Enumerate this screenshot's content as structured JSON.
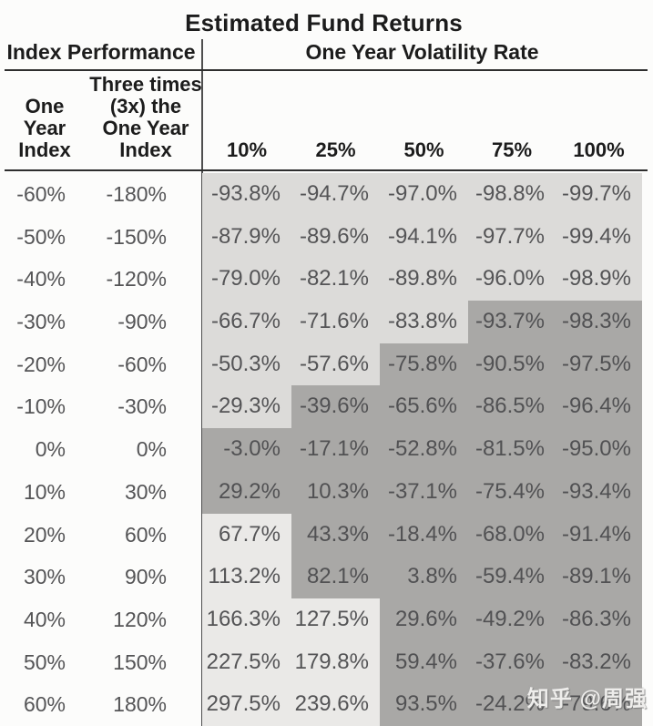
{
  "title": "Estimated Fund Returns",
  "group_headers": {
    "left": "Index Performance",
    "right": "One Year Volatility Rate"
  },
  "subheaders": {
    "one_year_index": "One\nYear\nIndex",
    "three_times_index": "Three times\n(3x) the\nOne Year\nIndex",
    "volatility": [
      "10%",
      "25%",
      "50%",
      "75%",
      "100%"
    ]
  },
  "watermark": "知乎 @周强",
  "colors": {
    "light_shade": "#dcdbd9",
    "dark_shade": "#a9a8a6",
    "bright_shade": "#eae9e7",
    "rule": "#2e2e2e",
    "header_text": "#1c1c1c",
    "data_text": "#545456"
  },
  "chart_data": {
    "type": "table",
    "title": "Estimated Fund Returns",
    "column_groups": [
      {
        "label": "Index Performance",
        "span": 2
      },
      {
        "label": "One Year Volatility Rate",
        "span": 5
      }
    ],
    "columns": [
      "One Year Index",
      "Three times (3x) the One Year Index",
      "10%",
      "25%",
      "50%",
      "75%",
      "100%"
    ],
    "rows": [
      [
        "-60%",
        "-180%",
        "-93.8%",
        "-94.7%",
        "-97.0%",
        "-98.8%",
        "-99.7%"
      ],
      [
        "-50%",
        "-150%",
        "-87.9%",
        "-89.6%",
        "-94.1%",
        "-97.7%",
        "-99.4%"
      ],
      [
        "-40%",
        "-120%",
        "-79.0%",
        "-82.1%",
        "-89.8%",
        "-96.0%",
        "-98.9%"
      ],
      [
        "-30%",
        "-90%",
        "-66.7%",
        "-71.6%",
        "-83.8%",
        "-93.7%",
        "-98.3%"
      ],
      [
        "-20%",
        "-60%",
        "-50.3%",
        "-57.6%",
        "-75.8%",
        "-90.5%",
        "-97.5%"
      ],
      [
        "-10%",
        "-30%",
        "-29.3%",
        "-39.6%",
        "-65.6%",
        "-86.5%",
        "-96.4%"
      ],
      [
        "0%",
        "0%",
        "-3.0%",
        "-17.1%",
        "-52.8%",
        "-81.5%",
        "-95.0%"
      ],
      [
        "10%",
        "30%",
        "29.2%",
        "10.3%",
        "-37.1%",
        "-75.4%",
        "-93.4%"
      ],
      [
        "20%",
        "60%",
        "67.7%",
        "43.3%",
        "-18.4%",
        "-68.0%",
        "-91.4%"
      ],
      [
        "30%",
        "90%",
        "113.2%",
        "82.1%",
        "3.8%",
        "-59.4%",
        "-89.1%"
      ],
      [
        "40%",
        "120%",
        "166.3%",
        "127.5%",
        "29.6%",
        "-49.2%",
        "-86.3%"
      ],
      [
        "50%",
        "150%",
        "227.5%",
        "179.8%",
        "59.4%",
        "-37.6%",
        "-83.2%"
      ],
      [
        "60%",
        "180%",
        "297.5%",
        "239.6%",
        "93.5%",
        "-24.2%",
        "-79.6%"
      ]
    ],
    "cell_shading": [
      [
        "light",
        "light",
        "light",
        "light",
        "light"
      ],
      [
        "light",
        "light",
        "light",
        "light",
        "light"
      ],
      [
        "light",
        "light",
        "light",
        "light",
        "light"
      ],
      [
        "light",
        "light",
        "light",
        "dark",
        "dark"
      ],
      [
        "light",
        "light",
        "dark",
        "dark",
        "dark"
      ],
      [
        "light",
        "dark",
        "dark",
        "dark",
        "dark"
      ],
      [
        "dark",
        "dark",
        "dark",
        "dark",
        "dark"
      ],
      [
        "dark",
        "dark",
        "dark",
        "dark",
        "dark"
      ],
      [
        "bright",
        "dark",
        "dark",
        "dark",
        "dark"
      ],
      [
        "bright",
        "dark",
        "dark",
        "dark",
        "dark"
      ],
      [
        "bright",
        "bright",
        "dark",
        "dark",
        "dark"
      ],
      [
        "bright",
        "bright",
        "dark",
        "dark",
        "dark"
      ],
      [
        "bright",
        "bright",
        "dark",
        "dark",
        "dark"
      ]
    ],
    "shading_legend": {
      "light": "light gray cell",
      "dark": "dark gray cell (fund underperforms 3x index)",
      "bright": "near-white cell"
    }
  }
}
